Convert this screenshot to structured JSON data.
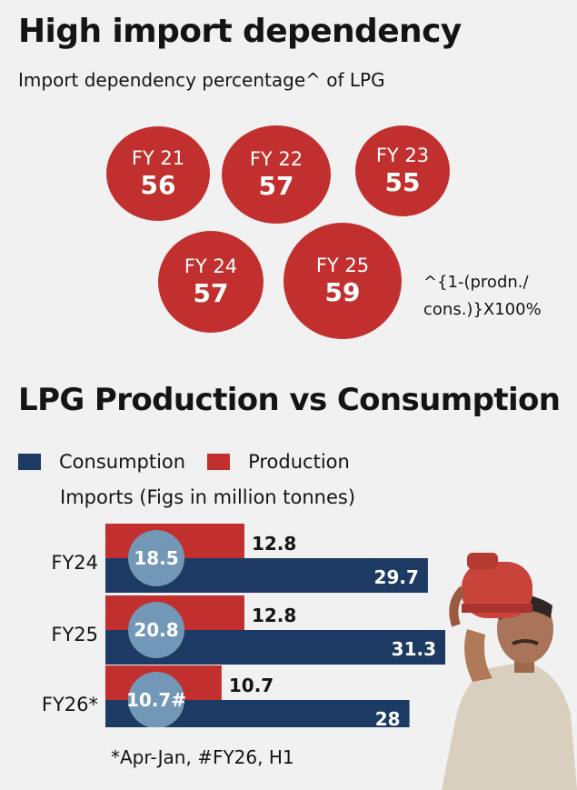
{
  "header": {
    "title": "High import dependency",
    "subtitle": "Import dependency percentage^ of LPG"
  },
  "dependency": {
    "items": [
      {
        "year": "FY 21",
        "value": "56"
      },
      {
        "year": "FY 22",
        "value": "57"
      },
      {
        "year": "FY 23",
        "value": "55"
      },
      {
        "year": "FY 24",
        "value": "57"
      },
      {
        "year": "FY 25",
        "value": "59"
      }
    ],
    "footnote_line1": "^{1-(prodn./",
    "footnote_line2": "cons.)}X100%"
  },
  "section2": {
    "title": "LPG Production vs Consumption",
    "legend_consumption": "Consumption",
    "legend_production": "Production",
    "legend_imports": "Imports (Figs in million tonnes)",
    "note": "*Apr-Jan, #FY26, H1"
  },
  "colors": {
    "red": "#c1302e",
    "navy": "#1c3a63",
    "steel": "#7397b6",
    "background": "#f1f1f1"
  },
  "chart_data": [
    {
      "type": "bubble",
      "title": "High import dependency",
      "subtitle": "Import dependency percentage^ of LPG",
      "categories": [
        "FY 21",
        "FY 22",
        "FY 23",
        "FY 24",
        "FY 25"
      ],
      "values": [
        56,
        57,
        55,
        57,
        59
      ],
      "unit": "%"
    },
    {
      "type": "bar",
      "orientation": "horizontal",
      "title": "LPG Production vs Consumption",
      "categories": [
        "FY24",
        "FY25",
        "FY26*"
      ],
      "series": [
        {
          "name": "Production",
          "values": [
            12.8,
            12.8,
            10.7
          ],
          "labels": [
            "12.8",
            "12.8",
            "10.7"
          ]
        },
        {
          "name": "Consumption",
          "values": [
            29.7,
            31.3,
            28
          ],
          "labels": [
            "29.7",
            "31.3",
            "28"
          ]
        },
        {
          "name": "Imports",
          "values": [
            18.5,
            20.8,
            10.7
          ],
          "labels": [
            "18.5",
            "20.8",
            "10.7#"
          ]
        }
      ],
      "unit": "million tonnes",
      "xlim": [
        0,
        31.3
      ]
    }
  ]
}
